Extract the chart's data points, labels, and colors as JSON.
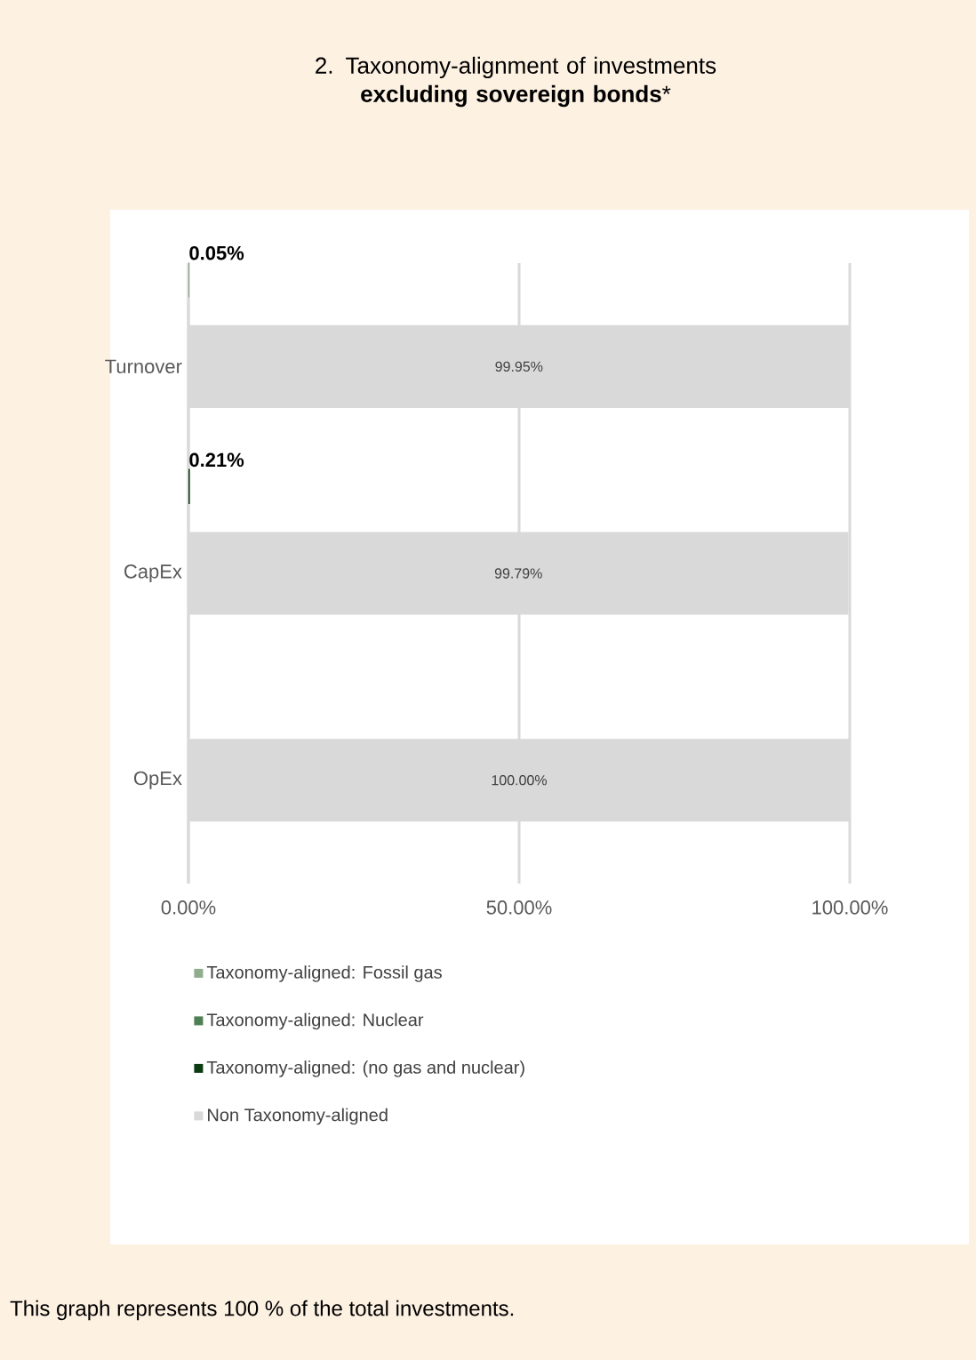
{
  "chart_data": {
    "type": "bar",
    "orientation": "horizontal",
    "title": "2. Taxonomy-alignment of investments **excluding sovereign bonds***",
    "categories": [
      "Turnover",
      "CapEx",
      "OpEx"
    ],
    "series": [
      {
        "name": "Taxonomy-aligned: Fossil gas",
        "color": "#8fac8c",
        "values": [
          0,
          0,
          0
        ]
      },
      {
        "name": "Taxonomy-aligned: Nuclear",
        "color": "#4f7f54",
        "values": [
          0,
          0,
          0
        ]
      },
      {
        "name": "Taxonomy-aligned: (no gas and nuclear)",
        "color": "#0b3b10",
        "values": [
          0.05,
          0.21,
          0
        ],
        "value_labels": [
          "0.05%",
          "0.21%",
          null
        ]
      },
      {
        "name": "Non Taxonomy-aligned",
        "color": "#d9d9d9",
        "values": [
          99.95,
          99.79,
          100
        ],
        "value_labels": [
          "99.95%",
          "99.79%",
          "100.00%"
        ]
      }
    ],
    "xlim": [
      0,
      100
    ],
    "xticks": [
      {
        "value": 0,
        "label": "0.00%"
      },
      {
        "value": 50,
        "label": "50.00%"
      },
      {
        "value": 100,
        "label": "100.00%"
      }
    ],
    "grid": "x",
    "legend": "bottom",
    "annotations": [
      "This graph represents 100 % of the total investments."
    ]
  }
}
